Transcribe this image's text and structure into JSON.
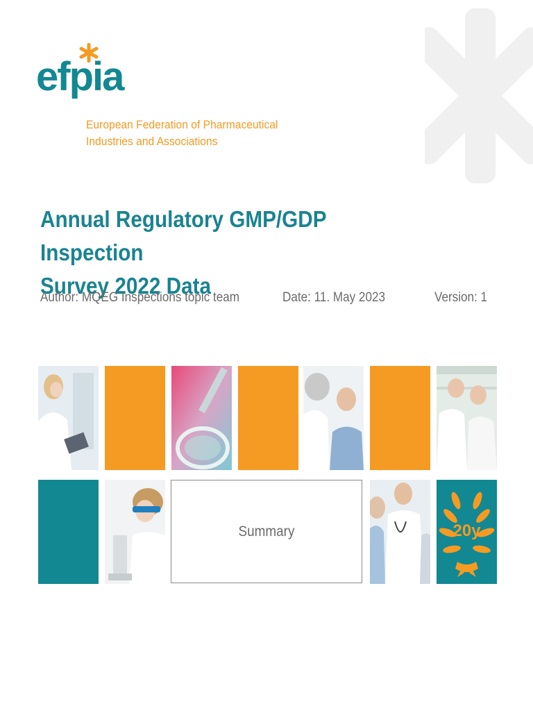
{
  "colors": {
    "teal": "#128892",
    "orange": "#f59a23",
    "title": "#1a8391",
    "meta_text": "#6b6b6b",
    "watermark": "#f0f0f0"
  },
  "logo": {
    "wordmark": "efpia",
    "icon": "asterisk-icon",
    "subtitle_line1": "European Federation of Pharmaceutical",
    "subtitle_line2": "Industries and Associations"
  },
  "title": {
    "line1": "Annual Regulatory GMP/GDP Inspection",
    "line2": "Survey 2022 Data"
  },
  "meta": {
    "author": "Author: MQEG Inspections topic team",
    "date": "Date: 11. May 2023",
    "version": "Version: 1"
  },
  "tiles": {
    "photo_1": "doctor-with-tablet",
    "photo_2": "lab-glassware-pipette",
    "photo_3": "doctor-examining-patient",
    "photo_4": "pharmacists-at-shelves",
    "photo_5": "scientist-with-microscope",
    "photo_6": "doctors-with-stethoscope",
    "anniversary_badge": "20y",
    "summary": "Summary"
  }
}
